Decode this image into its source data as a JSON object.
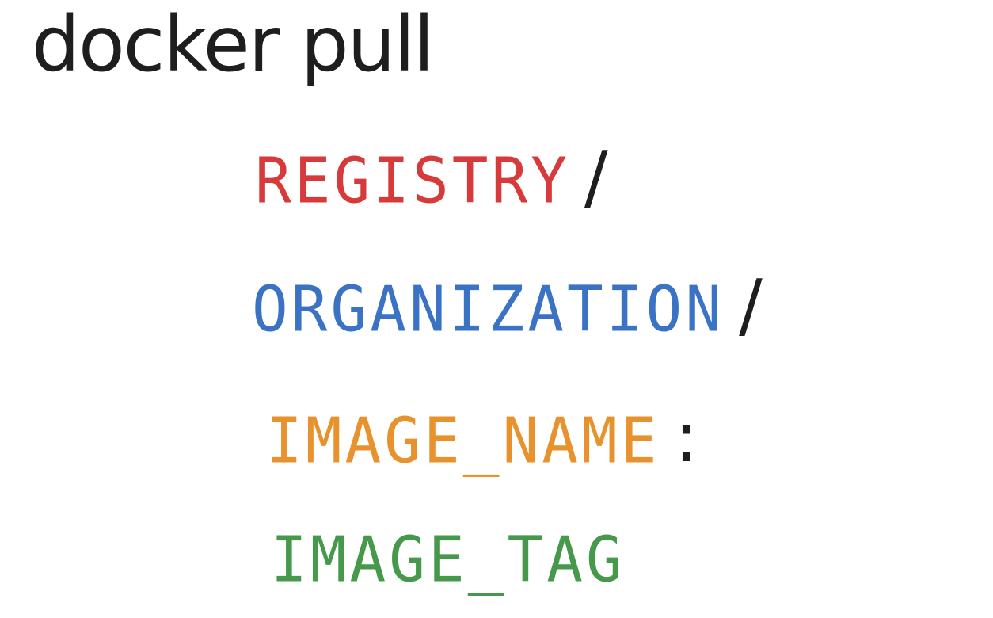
{
  "command": "docker pull",
  "parts": {
    "registry": {
      "text": "REGISTRY",
      "color": "#d63a3a",
      "separator": "/"
    },
    "organization": {
      "text": "ORGANIZATION",
      "color": "#3a72c4",
      "separator": "/"
    },
    "image_name": {
      "text": "IMAGE_NAME",
      "color": "#e8922e",
      "separator": ":"
    },
    "image_tag": {
      "text": "IMAGE_TAG",
      "color": "#46994a"
    }
  }
}
